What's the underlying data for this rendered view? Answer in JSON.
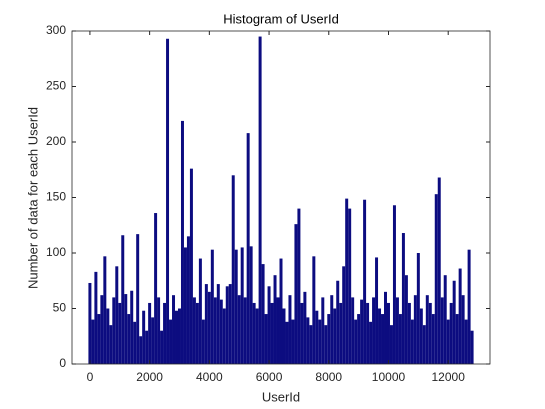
{
  "chart_data": {
    "type": "bar",
    "title": "Histogram of UserId",
    "xlabel": "UserId",
    "ylabel": "Number of data for each UserId",
    "x": [
      0,
      100,
      200,
      300,
      400,
      500,
      600,
      700,
      800,
      900,
      1000,
      1100,
      1200,
      1300,
      1400,
      1500,
      1600,
      1700,
      1800,
      1900,
      2000,
      2100,
      2200,
      2300,
      2400,
      2500,
      2600,
      2700,
      2800,
      2900,
      3000,
      3100,
      3200,
      3300,
      3400,
      3500,
      3600,
      3700,
      3800,
      3900,
      4000,
      4100,
      4200,
      4300,
      4400,
      4500,
      4600,
      4700,
      4800,
      4900,
      5000,
      5100,
      5200,
      5300,
      5400,
      5500,
      5600,
      5700,
      5800,
      5900,
      6000,
      6100,
      6200,
      6300,
      6400,
      6500,
      6600,
      6700,
      6800,
      6900,
      7000,
      7100,
      7200,
      7300,
      7400,
      7500,
      7600,
      7700,
      7800,
      7900,
      8000,
      8100,
      8200,
      8300,
      8400,
      8500,
      8600,
      8700,
      8800,
      8900,
      9000,
      9100,
      9200,
      9300,
      9400,
      9500,
      9600,
      9700,
      9800,
      9900,
      10000,
      10100,
      10200,
      10300,
      10400,
      10500,
      10600,
      10700,
      10800,
      10900,
      11000,
      11100,
      11200,
      11300,
      11400,
      11500,
      11600,
      11700,
      11800,
      11900,
      12000,
      12100,
      12200,
      12300,
      12400,
      12500,
      12600,
      12700,
      12800
    ],
    "values": [
      73,
      40,
      83,
      45,
      62,
      97,
      50,
      35,
      60,
      88,
      55,
      116,
      63,
      45,
      66,
      38,
      117,
      25,
      48,
      30,
      55,
      42,
      136,
      60,
      30,
      55,
      293,
      40,
      62,
      48,
      50,
      219,
      105,
      115,
      176,
      60,
      55,
      95,
      40,
      72,
      65,
      103,
      60,
      72,
      58,
      50,
      70,
      72,
      170,
      103,
      62,
      105,
      60,
      208,
      106,
      55,
      50,
      295,
      90,
      45,
      70,
      55,
      80,
      60,
      95,
      50,
      38,
      62,
      40,
      126,
      140,
      55,
      65,
      42,
      35,
      97,
      48,
      40,
      60,
      35,
      45,
      62,
      50,
      75,
      55,
      88,
      149,
      140,
      60,
      40,
      45,
      58,
      148,
      55,
      38,
      60,
      96,
      50,
      45,
      65,
      55,
      35,
      143,
      60,
      45,
      118,
      80,
      55,
      40,
      62,
      100,
      50,
      35,
      62,
      55,
      45,
      153,
      168,
      60,
      80,
      40,
      55,
      75,
      45,
      86,
      62,
      40,
      103,
      30
    ],
    "color": "#0c0c80",
    "xlim": [
      -600,
      13400
    ],
    "xticks": [
      0,
      2000,
      4000,
      6000,
      8000,
      10000,
      12000
    ],
    "ylim": [
      0,
      300
    ],
    "yticks": [
      0,
      50,
      100,
      150,
      200,
      250,
      300
    ]
  }
}
